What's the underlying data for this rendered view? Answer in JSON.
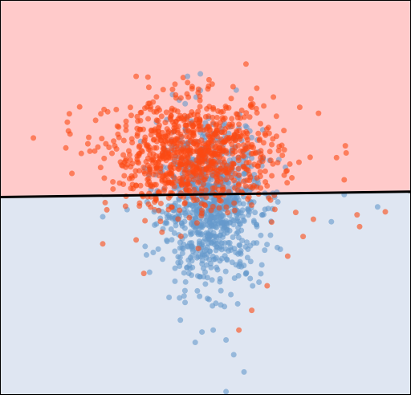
{
  "chart_data": {
    "type": "scatter",
    "title": "",
    "xlabel": "",
    "ylabel": "",
    "xlim": [
      -4,
      4
    ],
    "ylim": [
      -4,
      4
    ],
    "grid": false,
    "legend": "none",
    "axes_visible": false,
    "decision_boundary": {
      "x": [
        -4,
        4
      ],
      "y": [
        0.0,
        0.11
      ]
    },
    "regions": [
      {
        "name": "upper",
        "color": "#ffcaca"
      },
      {
        "name": "lower",
        "color": "#dfe6f2"
      }
    ],
    "series": [
      {
        "color": "#fc4a12",
        "spread": [
          0.82,
          0.56
        ],
        "points": [
          [
            -3.35,
            1.2
          ],
          [
            -2.45,
            1.83
          ],
          [
            -2.65,
            1.69
          ],
          [
            -1.35,
            2.45
          ],
          [
            -1.35,
            0.23
          ],
          [
            -1.35,
            -0.87
          ],
          [
            -2.25,
            0.93
          ],
          [
            -2.6,
            0.48
          ],
          [
            -1.6,
            0.26
          ],
          [
            0.5,
            2.0
          ],
          [
            2.2,
            1.7
          ],
          [
            2.55,
            0.8
          ],
          [
            2.7,
            0.35
          ],
          [
            3.5,
            -0.3
          ],
          [
            3.0,
            -0.6
          ],
          [
            2.95,
            -0.36
          ],
          [
            2.1,
            -0.45
          ],
          [
            1.9,
            -0.8
          ],
          [
            1.6,
            -1.2
          ],
          [
            1.2,
            -1.8
          ],
          [
            -1.2,
            -1.55
          ],
          [
            -2.0,
            -0.95
          ],
          [
            0.9,
            -2.3
          ],
          [
            0.65,
            -2.7
          ],
          [
            1.35,
            -0.25
          ]
        ]
      },
      {
        "color": "#6699cc",
        "spread": [
          0.5,
          0.78
        ],
        "points": [
          [
            0.15,
            -2.7
          ],
          [
            0.4,
            -2.9
          ],
          [
            -0.2,
            -2.95
          ],
          [
            0.55,
            -3.2
          ],
          [
            0.75,
            -3.55
          ],
          [
            0.4,
            -3.95
          ],
          [
            -0.4,
            -1.9
          ],
          [
            -0.15,
            -1.6
          ],
          [
            0.1,
            -1.35
          ],
          [
            0.3,
            -1.9
          ],
          [
            -0.35,
            2.45
          ],
          [
            -0.1,
            2.5
          ],
          [
            2.45,
            -0.5
          ],
          [
            2.7,
            0.05
          ],
          [
            3.35,
            -0.2
          ],
          [
            -2.0,
            -0.4
          ],
          [
            -1.0,
            -0.3
          ],
          [
            1.0,
            -0.6
          ]
        ]
      }
    ]
  }
}
